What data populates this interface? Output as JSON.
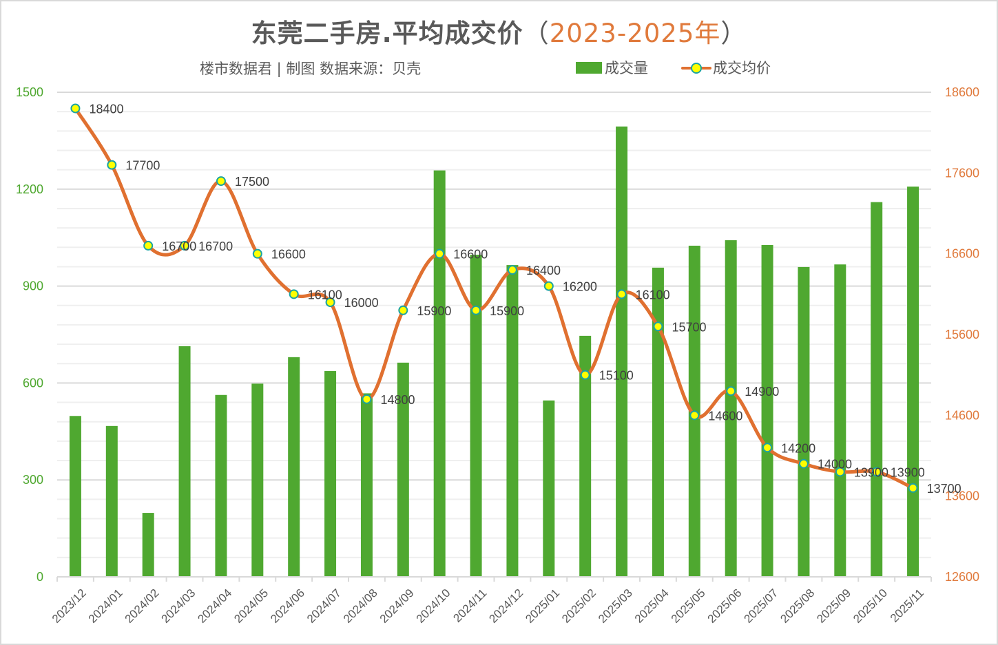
{
  "header": {
    "title_main": "东莞二手房.平均成交价",
    "title_paren_open": "（",
    "title_years": "2023-2025年",
    "title_paren_close": "）",
    "subtitle": "楼市数据君 | 制图  数据来源：贝壳"
  },
  "legend": {
    "bar_label": "成交量",
    "line_label": "成交均价"
  },
  "colors": {
    "bar": "#4fa830",
    "line": "#e07030",
    "marker_fill": "#ffff00",
    "marker_stroke": "#1aa3a3",
    "left_axis": "#4fa830",
    "right_axis": "#e07a3c",
    "grid_major": "#d9d9d9",
    "grid_minor": "#efefef"
  },
  "chart_data": {
    "type": "bar+line",
    "title": "东莞二手房.平均成交价（2023-2025年）",
    "subtitle": "楼市数据君 | 制图  数据来源：贝壳",
    "xlabel": "",
    "categories": [
      "2023/12",
      "2024/01",
      "2024/02",
      "2024/03",
      "2024/04",
      "2024/05",
      "2024/06",
      "2024/07",
      "2024/08",
      "2024/09",
      "2024/10",
      "2024/11",
      "2024/12",
      "2025/01",
      "2025/02",
      "2025/03",
      "2025/04",
      "2025/05",
      "2025/06",
      "2025/07",
      "2025/08",
      "2025/09",
      "2025/10",
      "2025/11"
    ],
    "series": [
      {
        "name": "成交量",
        "type": "bar",
        "axis": "left",
        "values": [
          498,
          467,
          198,
          714,
          563,
          598,
          680,
          637,
          568,
          663,
          1258,
          997,
          965,
          546,
          746,
          1394,
          957,
          1025,
          1042,
          1027,
          959,
          967,
          1160,
          1208
        ]
      },
      {
        "name": "成交均价",
        "type": "line",
        "axis": "right",
        "smooth": true,
        "values": [
          18400,
          17700,
          16700,
          16700,
          17500,
          16600,
          16100,
          16000,
          14800,
          15900,
          16600,
          15900,
          16400,
          16200,
          15100,
          16100,
          15700,
          14600,
          14900,
          14200,
          14000,
          13900,
          13900,
          13700
        ],
        "data_labels": [
          "18400",
          "17700",
          "16700",
          "16700",
          "17500",
          "16600",
          "16100",
          "16000",
          "14800",
          "15900",
          "16600",
          "15900",
          "16400",
          "16200",
          "15100",
          "16100",
          "15700",
          "14600",
          "14900",
          "14200",
          "14000",
          "13900",
          "13900",
          "13700"
        ]
      }
    ],
    "y_left": {
      "range": [
        0,
        1500
      ],
      "ticks": [
        0,
        300,
        600,
        900,
        1200,
        1500
      ],
      "minor_step": 60
    },
    "y_right": {
      "range": [
        12600,
        18600
      ],
      "ticks": [
        12600,
        13600,
        14600,
        15600,
        16600,
        17600,
        18600
      ]
    },
    "grid": true,
    "legend_position": "top-right"
  }
}
